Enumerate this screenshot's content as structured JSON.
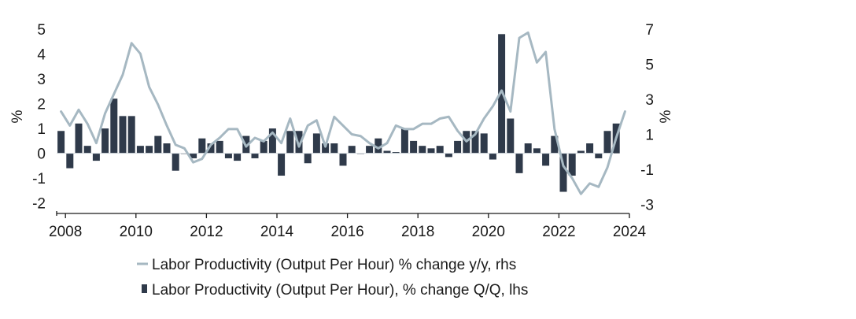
{
  "chart_data": {
    "type": "bar+line",
    "x_axis": {
      "ticks": [
        "2008",
        "2010",
        "2012",
        "2014",
        "2016",
        "2018",
        "2020",
        "2022",
        "2024"
      ],
      "range": [
        2007.75,
        2024.0
      ]
    },
    "y_left": {
      "label": "%",
      "range": [
        -2.2,
        5.0
      ],
      "ticks": [
        "5",
        "4",
        "3",
        "2",
        "1",
        "0",
        "-1",
        "-2"
      ]
    },
    "y_right": {
      "label": "%",
      "range": [
        -3.2,
        7.0
      ],
      "ticks": [
        "7",
        "5",
        "3",
        "1",
        "-1",
        "-3"
      ]
    },
    "colors": {
      "bars": "#2f3a4a",
      "line": "#a6b8c2",
      "axis": "#1a1a1a"
    },
    "legend_position": "bottom",
    "series": [
      {
        "name": "Labor Productivity (Output Per Hour) % change y/y, rhs",
        "kind": "line",
        "axis": "right",
        "points": [
          [
            2007.875,
            2.3
          ],
          [
            2008.125,
            1.5
          ],
          [
            2008.375,
            2.4
          ],
          [
            2008.625,
            1.6
          ],
          [
            2008.875,
            0.5
          ],
          [
            2009.125,
            2.2
          ],
          [
            2009.375,
            3.3
          ],
          [
            2009.625,
            4.4
          ],
          [
            2009.875,
            6.2
          ],
          [
            2010.125,
            5.6
          ],
          [
            2010.375,
            3.7
          ],
          [
            2010.625,
            2.7
          ],
          [
            2010.875,
            1.5
          ],
          [
            2011.125,
            0.4
          ],
          [
            2011.375,
            0.2
          ],
          [
            2011.625,
            -0.6
          ],
          [
            2011.875,
            -0.4
          ],
          [
            2012.125,
            0.4
          ],
          [
            2012.375,
            0.8
          ],
          [
            2012.625,
            1.3
          ],
          [
            2012.875,
            1.3
          ],
          [
            2013.125,
            0.3
          ],
          [
            2013.375,
            0.8
          ],
          [
            2013.625,
            0.6
          ],
          [
            2013.875,
            1.1
          ],
          [
            2014.125,
            0.5
          ],
          [
            2014.375,
            1.9
          ],
          [
            2014.625,
            0.3
          ],
          [
            2014.875,
            1.5
          ],
          [
            2015.125,
            1.8
          ],
          [
            2015.375,
            0.3
          ],
          [
            2015.625,
            2.0
          ],
          [
            2015.875,
            1.5
          ],
          [
            2016.125,
            1.0
          ],
          [
            2016.375,
            0.9
          ],
          [
            2016.625,
            0.5
          ],
          [
            2016.875,
            0.2
          ],
          [
            2017.125,
            0.5
          ],
          [
            2017.375,
            1.5
          ],
          [
            2017.625,
            1.3
          ],
          [
            2017.875,
            1.3
          ],
          [
            2018.125,
            1.6
          ],
          [
            2018.375,
            1.6
          ],
          [
            2018.625,
            1.9
          ],
          [
            2018.875,
            2.0
          ],
          [
            2019.125,
            1.2
          ],
          [
            2019.375,
            0.6
          ],
          [
            2019.625,
            1.0
          ],
          [
            2019.875,
            1.9
          ],
          [
            2020.125,
            2.6
          ],
          [
            2020.375,
            3.5
          ],
          [
            2020.625,
            2.3
          ],
          [
            2020.875,
            6.5
          ],
          [
            2021.125,
            6.8
          ],
          [
            2021.375,
            5.1
          ],
          [
            2021.625,
            5.7
          ],
          [
            2021.875,
            1.3
          ],
          [
            2022.125,
            -0.8
          ],
          [
            2022.375,
            -1.5
          ],
          [
            2022.625,
            -2.4
          ],
          [
            2022.875,
            -1.8
          ],
          [
            2023.125,
            -2.0
          ],
          [
            2023.375,
            -0.9
          ],
          [
            2023.625,
            0.8
          ],
          [
            2023.875,
            2.3
          ]
        ]
      },
      {
        "name": "Labor Productivity (Output Per Hour), % change Q/Q, lhs",
        "kind": "bar",
        "axis": "left",
        "points": [
          [
            2007.875,
            0.9
          ],
          [
            2008.125,
            -0.6
          ],
          [
            2008.375,
            1.2
          ],
          [
            2008.625,
            0.3
          ],
          [
            2008.875,
            -0.3
          ],
          [
            2009.125,
            1.0
          ],
          [
            2009.375,
            2.2
          ],
          [
            2009.625,
            1.5
          ],
          [
            2009.875,
            1.5
          ],
          [
            2010.125,
            0.3
          ],
          [
            2010.375,
            0.3
          ],
          [
            2010.625,
            0.7
          ],
          [
            2010.875,
            0.4
          ],
          [
            2011.125,
            -0.7
          ],
          [
            2011.375,
            0.0
          ],
          [
            2011.625,
            -0.2
          ],
          [
            2011.875,
            0.6
          ],
          [
            2012.125,
            0.4
          ],
          [
            2012.375,
            0.5
          ],
          [
            2012.625,
            -0.2
          ],
          [
            2012.875,
            -0.3
          ],
          [
            2013.125,
            0.7
          ],
          [
            2013.375,
            -0.2
          ],
          [
            2013.625,
            0.5
          ],
          [
            2013.875,
            1.0
          ],
          [
            2014.125,
            -0.9
          ],
          [
            2014.375,
            0.9
          ],
          [
            2014.625,
            0.9
          ],
          [
            2014.875,
            -0.4
          ],
          [
            2015.125,
            0.8
          ],
          [
            2015.375,
            0.4
          ],
          [
            2015.625,
            0.4
          ],
          [
            2015.875,
            -0.5
          ],
          [
            2016.125,
            0.3
          ],
          [
            2016.375,
            0.0
          ],
          [
            2016.625,
            0.3
          ],
          [
            2016.875,
            0.6
          ],
          [
            2017.125,
            0.1
          ],
          [
            2017.375,
            0.05
          ],
          [
            2017.625,
            1.0
          ],
          [
            2017.875,
            0.5
          ],
          [
            2018.125,
            0.3
          ],
          [
            2018.375,
            0.2
          ],
          [
            2018.625,
            0.3
          ],
          [
            2018.875,
            -0.15
          ],
          [
            2019.125,
            0.5
          ],
          [
            2019.375,
            0.9
          ],
          [
            2019.625,
            0.9
          ],
          [
            2019.875,
            0.8
          ],
          [
            2020.125,
            -0.25
          ],
          [
            2020.375,
            4.8
          ],
          [
            2020.625,
            1.4
          ],
          [
            2020.875,
            -0.8
          ],
          [
            2021.125,
            0.4
          ],
          [
            2021.375,
            0.2
          ],
          [
            2021.625,
            -0.5
          ],
          [
            2021.875,
            0.7
          ],
          [
            2022.125,
            -1.55
          ],
          [
            2022.375,
            -0.9
          ],
          [
            2022.625,
            0.1
          ],
          [
            2022.875,
            0.4
          ],
          [
            2023.125,
            -0.2
          ],
          [
            2023.375,
            0.9
          ],
          [
            2023.625,
            1.2
          ]
        ]
      }
    ]
  }
}
